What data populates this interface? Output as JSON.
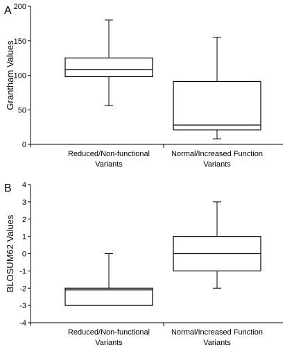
{
  "chart_data": [
    {
      "type": "box",
      "panel_label": "A",
      "ylabel": "Grantham Values",
      "ylim": [
        0,
        200
      ],
      "yticks": [
        "0",
        "50",
        "100",
        "150",
        "200"
      ],
      "categories": [
        [
          "Reduced/Non-functional",
          "Variants"
        ],
        [
          "Normal/Increased Function",
          "Variants"
        ]
      ],
      "boxes": [
        {
          "min": 56,
          "q1": 98,
          "median": 108,
          "q3": 125,
          "max": 180
        },
        {
          "min": 8,
          "q1": 21,
          "median": 28,
          "q3": 91,
          "max": 155
        }
      ]
    },
    {
      "type": "box",
      "panel_label": "B",
      "ylabel": "BLOSUM62 Values",
      "ylim": [
        -4,
        4
      ],
      "yticks": [
        "-4",
        "-3",
        "-2",
        "-1",
        "0",
        "1",
        "2",
        "3",
        "4"
      ],
      "categories": [
        [
          "Reduced/Non-functional",
          "Variants"
        ],
        [
          "Normal/Increased Function",
          "Variants"
        ]
      ],
      "boxes": [
        {
          "min": -3,
          "q1": -3,
          "median": -2.1,
          "q3": -2,
          "max": 0
        },
        {
          "min": -2,
          "q1": -1,
          "median": 0,
          "q3": 1,
          "max": 3
        }
      ]
    }
  ]
}
